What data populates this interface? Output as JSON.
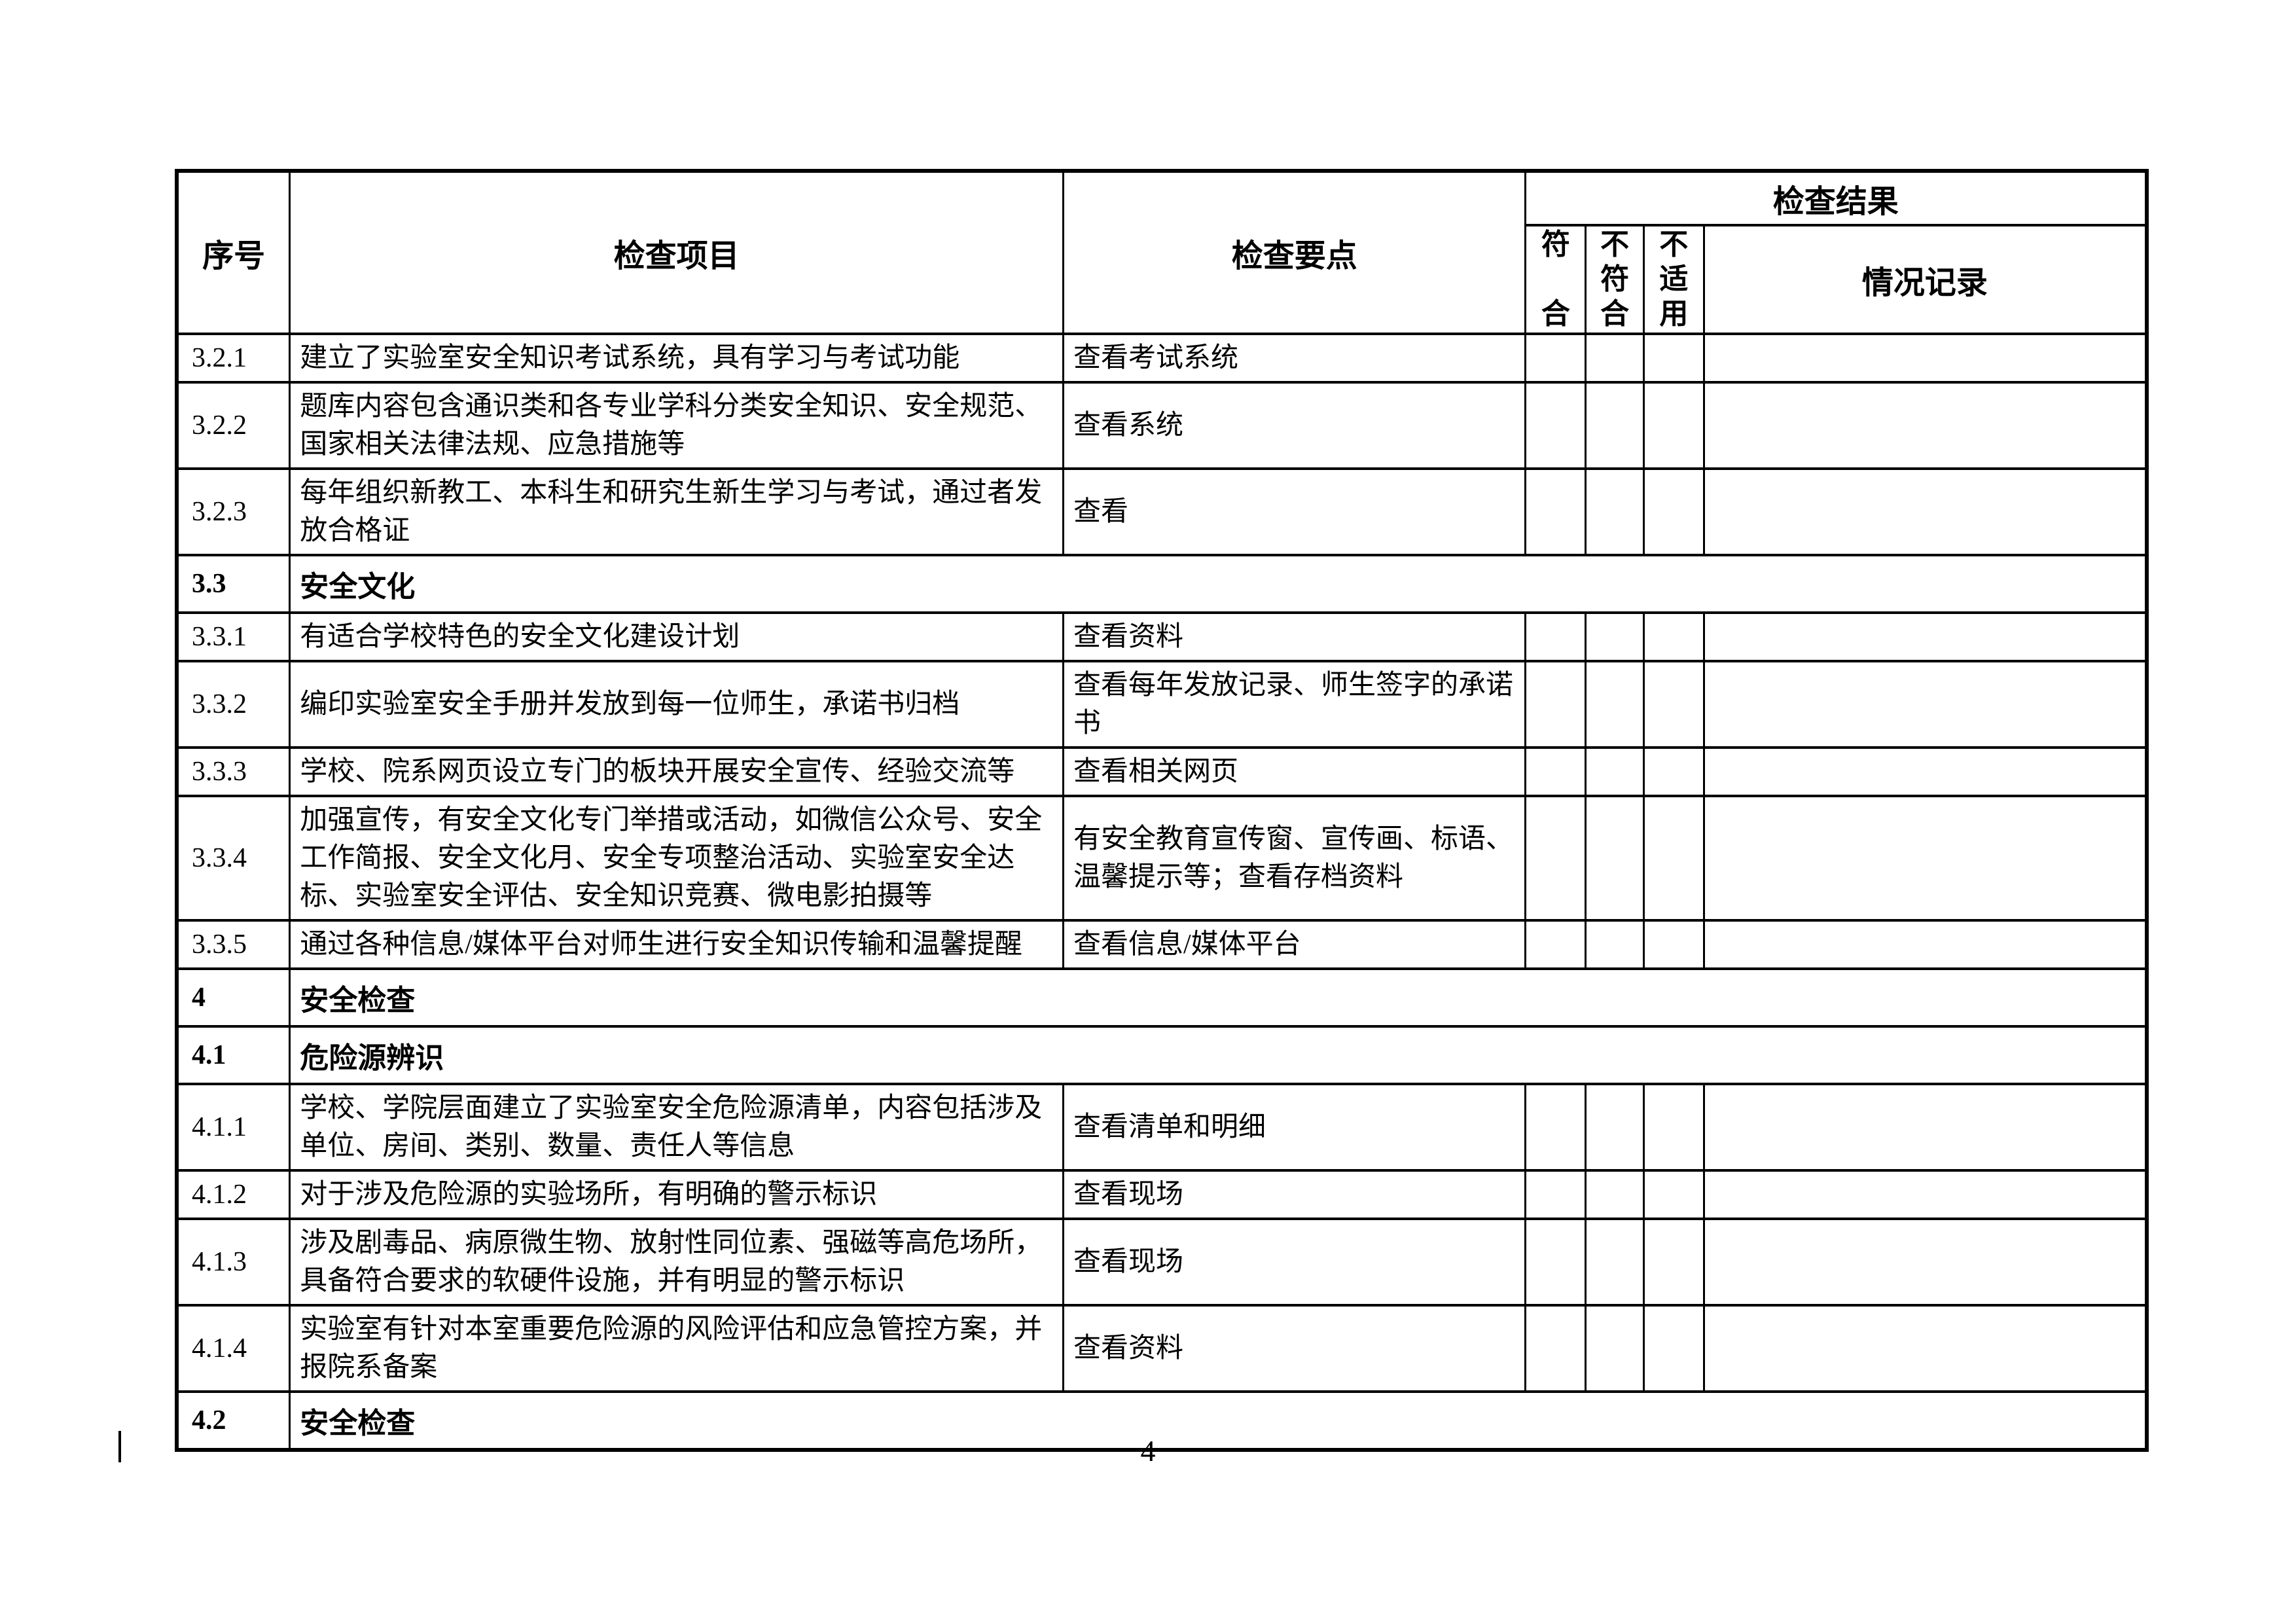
{
  "page": {
    "number": "4"
  },
  "table": {
    "headers": {
      "seq": "序号",
      "item": "检查项目",
      "point": "检查要点",
      "result": "检查结果",
      "pass": "符合",
      "fail": "不符合",
      "na": "不适用",
      "record": "情况记录"
    },
    "rows": [
      {
        "no": "3.2.1",
        "item": "建立了实验室安全知识考试系统，具有学习与考试功能",
        "point": "查看考试系统"
      },
      {
        "no": "3.2.2",
        "item": "题库内容包含通识类和各专业学科分类安全知识、安全规范、国家相关法律法规、应急措施等",
        "point": "查看系统"
      },
      {
        "no": "3.2.3",
        "item": "每年组织新教工、本科生和研究生新生学习与考试，通过者发放合格证",
        "point": "查看"
      },
      {
        "no": "3.3",
        "title": "安全文化",
        "section": true
      },
      {
        "no": "3.3.1",
        "item": "有适合学校特色的安全文化建设计划",
        "point": "查看资料"
      },
      {
        "no": "3.3.2",
        "item": "编印实验室安全手册并发放到每一位师生，承诺书归档",
        "point": "查看每年发放记录、师生签字的承诺书"
      },
      {
        "no": "3.3.3",
        "item": "学校、院系网页设立专门的板块开展安全宣传、经验交流等",
        "point": "查看相关网页"
      },
      {
        "no": "3.3.4",
        "item": "加强宣传，有安全文化专门举措或活动，如微信公众号、安全工作简报、安全文化月、安全专项整治活动、实验室安全达标、实验室安全评估、安全知识竞赛、微电影拍摄等",
        "point": "有安全教育宣传窗、宣传画、标语、温馨提示等；查看存档资料"
      },
      {
        "no": "3.3.5",
        "item": "通过各种信息/媒体平台对师生进行安全知识传输和温馨提醒",
        "point": "查看信息/媒体平台"
      },
      {
        "no": "4",
        "title": "安全检查",
        "section": true
      },
      {
        "no": "4.1",
        "title": "危险源辨识",
        "section": true
      },
      {
        "no": "4.1.1",
        "item": "学校、学院层面建立了实验室安全危险源清单，内容包括涉及单位、房间、类别、数量、责任人等信息",
        "point": "查看清单和明细"
      },
      {
        "no": "4.1.2",
        "item": "对于涉及危险源的实验场所，有明确的警示标识",
        "point": "查看现场"
      },
      {
        "no": "4.1.3",
        "item": "涉及剧毒品、病原微生物、放射性同位素、强磁等高危场所，具备符合要求的软硬件设施，并有明显的警示标识",
        "point": "查看现场"
      },
      {
        "no": "4.1.4",
        "item": "实验室有针对本室重要危险源的风险评估和应急管控方案，并报院系备案",
        "point": "查看资料"
      },
      {
        "no": "4.2",
        "title": "安全检查",
        "section": true
      }
    ]
  }
}
